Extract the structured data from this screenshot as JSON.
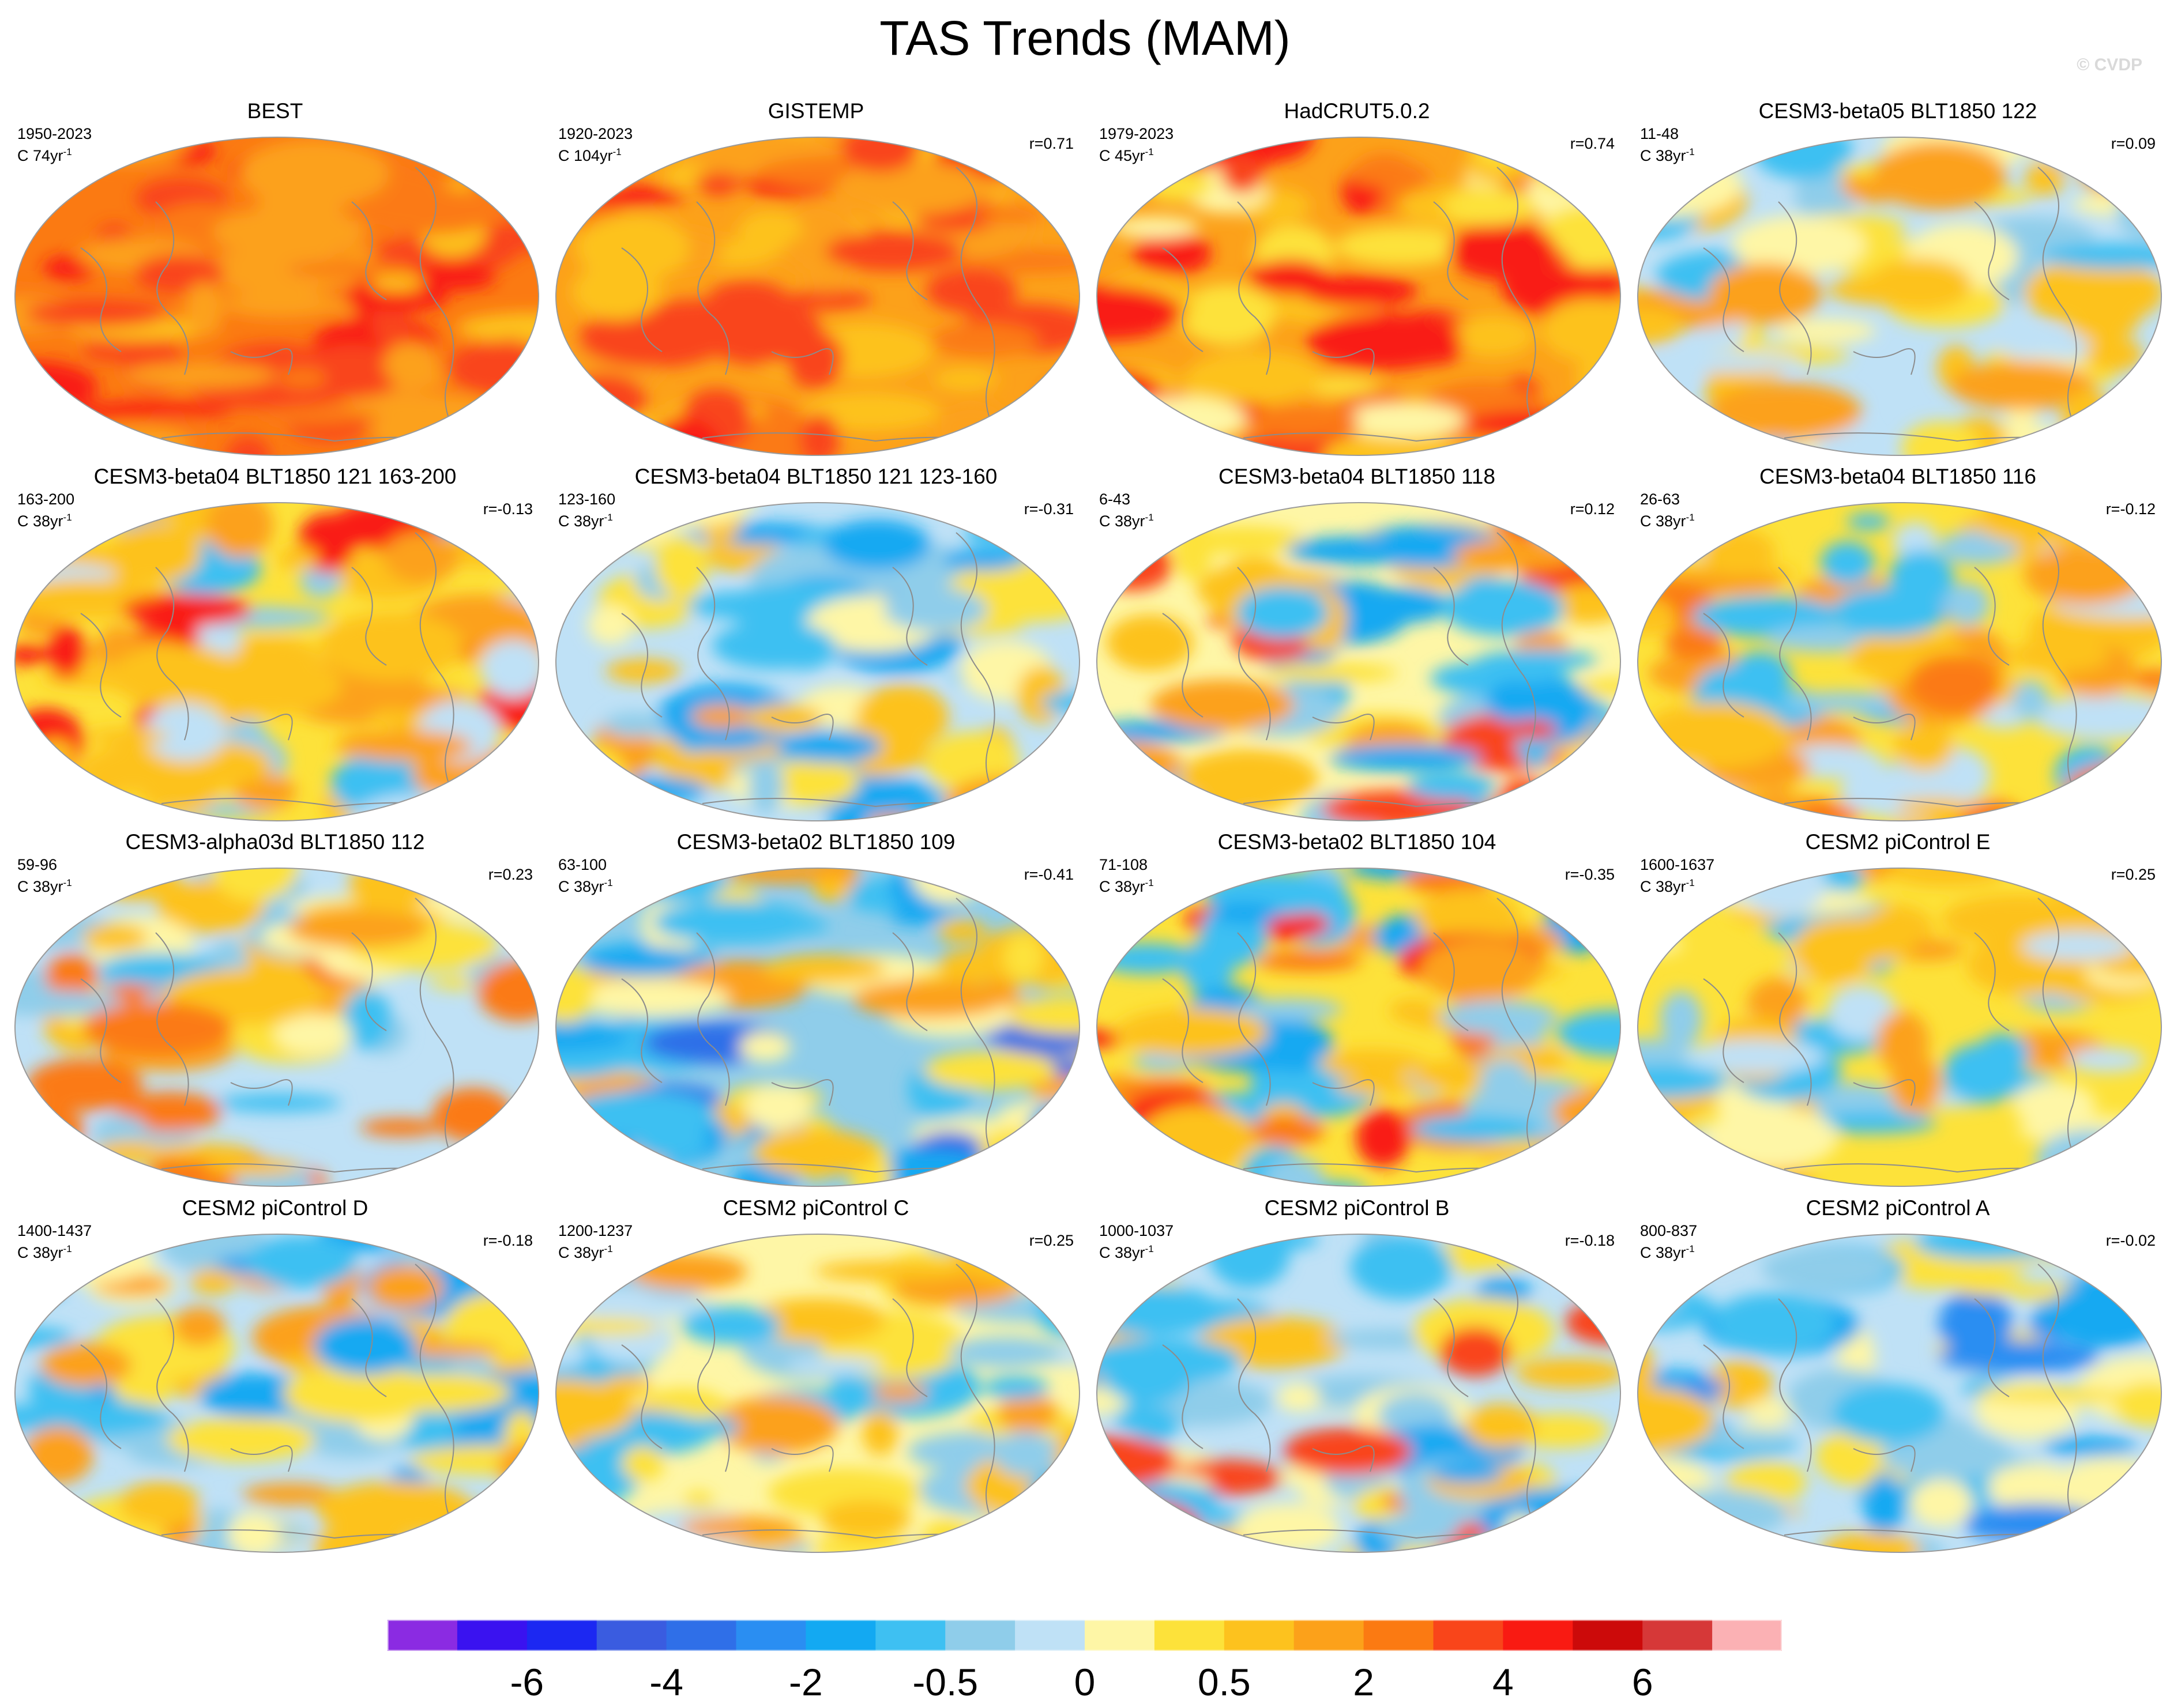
{
  "title": "TAS Trends (MAM)",
  "credit": "© CVDP",
  "chart_data": {
    "type": "heatmap",
    "title": "TAS Trends (MAM)",
    "projection": "global map (elliptical)",
    "panels": [
      {
        "name": "BEST",
        "years": "1950-2023",
        "length": "C 74yr",
        "r": ""
      },
      {
        "name": "GISTEMP",
        "years": "1920-2023",
        "length": "C 104yr",
        "r": "r=0.71"
      },
      {
        "name": "HadCRUT5.0.2",
        "years": "1979-2023",
        "length": "C 45yr",
        "r": "r=0.74"
      },
      {
        "name": "CESM3-beta05 BLT1850 122",
        "years": "11-48",
        "length": "C 38yr",
        "r": "r=0.09"
      },
      {
        "name": "CESM3-beta04 BLT1850 121 163-200",
        "years": "163-200",
        "length": "C 38yr",
        "r": "r=-0.13"
      },
      {
        "name": "CESM3-beta04 BLT1850 121 123-160",
        "years": "123-160",
        "length": "C 38yr",
        "r": "r=-0.31"
      },
      {
        "name": "CESM3-beta04 BLT1850 118",
        "years": "6-43",
        "length": "C 38yr",
        "r": "r=0.12"
      },
      {
        "name": "CESM3-beta04 BLT1850 116",
        "years": "26-63",
        "length": "C 38yr",
        "r": "r=-0.12"
      },
      {
        "name": "CESM3-alpha03d BLT1850 112",
        "years": "59-96",
        "length": "C 38yr",
        "r": "r=0.23"
      },
      {
        "name": "CESM3-beta02 BLT1850 109",
        "years": "63-100",
        "length": "C 38yr",
        "r": "r=-0.41"
      },
      {
        "name": "CESM3-beta02 BLT1850 104",
        "years": "71-108",
        "length": "C 38yr",
        "r": "r=-0.35"
      },
      {
        "name": "CESM2 piControl E",
        "years": "1600-1637",
        "length": "C 38yr",
        "r": "r=0.25"
      },
      {
        "name": "CESM2 piControl D",
        "years": "1400-1437",
        "length": "C 38yr",
        "r": "r=-0.18"
      },
      {
        "name": "CESM2 piControl C",
        "years": "1200-1237",
        "length": "C 38yr",
        "r": "r=0.25"
      },
      {
        "name": "CESM2 piControl B",
        "years": "1000-1037",
        "length": "C 38yr",
        "r": "r=-0.18"
      },
      {
        "name": "CESM2 piControl A",
        "years": "800-837",
        "length": "C 38yr",
        "r": "r=-0.02"
      }
    ],
    "colorbar": {
      "colors": [
        "#8b2be2",
        "#3a12f0",
        "#1c28f2",
        "#3a5ce0",
        "#2f6fe8",
        "#2a8ef2",
        "#13a9f2",
        "#3ec0f2",
        "#8fcdea",
        "#bfe1f6",
        "#fef6a6",
        "#fde23a",
        "#fdc21e",
        "#fca11a",
        "#fb7a12",
        "#f9451a",
        "#f91a12",
        "#cc0a0a",
        "#d63838",
        "#fbb1b4"
      ],
      "tick_labels": [
        "-6",
        "-4",
        "-2",
        "-0.5",
        "0",
        "0.5",
        "2",
        "4",
        "6"
      ],
      "tick_after_box": [
        2,
        4,
        6,
        8,
        10,
        12,
        14,
        16,
        18
      ]
    }
  }
}
